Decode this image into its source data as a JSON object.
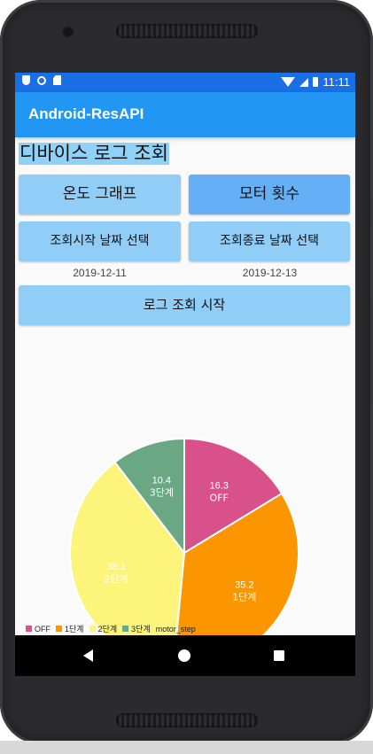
{
  "status_bar": {
    "time": "11:11",
    "left_icons": [
      "shield-icon",
      "circle-icon",
      "sd-card-icon"
    ],
    "right_icons": [
      "wifi-icon",
      "signal-icon",
      "battery-icon"
    ]
  },
  "app_bar": {
    "title": "Android-ResAPI"
  },
  "page": {
    "title": "디바이스 로그 조회",
    "temp_graph_button": "온도 그래프",
    "motor_count_button": "모터 횟수",
    "start_date_button": "조회시작 날짜 선택",
    "end_date_button": "조회종료 날짜 선택",
    "start_date": "2019-12-11",
    "end_date": "2019-12-13",
    "query_button": "로그 조회 시작"
  },
  "chart_data": {
    "type": "pie",
    "categories": [
      "OFF",
      "1단계",
      "2단계",
      "3단계"
    ],
    "values": [
      16.3,
      35.2,
      38.1,
      10.4
    ],
    "value_labels": [
      "16.3",
      "35.2",
      "38.1",
      "10.4"
    ],
    "colors": [
      "#d9518a",
      "#fb9500",
      "#fdf57b",
      "#6aa883"
    ],
    "legend_position": "bottom-left",
    "legend_entries": [
      "OFF",
      "1단계",
      "2단계",
      "3단계"
    ],
    "dataset_label": "motor_step"
  },
  "nav_bar": {
    "icons": [
      "back-icon",
      "home-icon",
      "recent-apps-icon"
    ]
  }
}
